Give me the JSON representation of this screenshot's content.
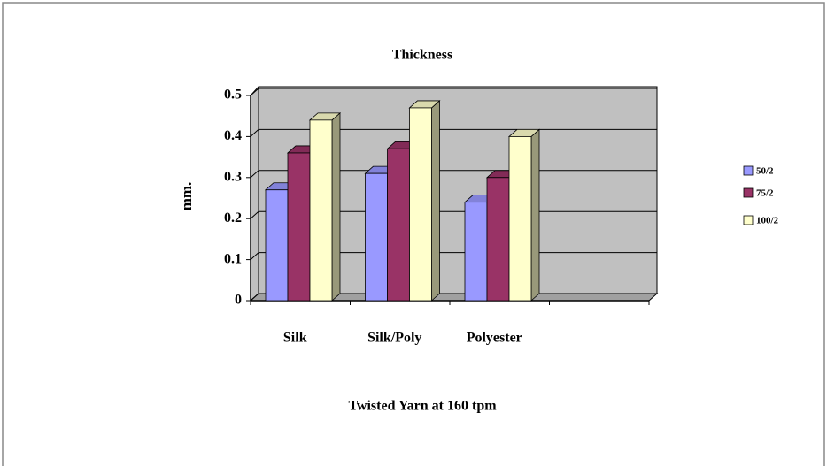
{
  "chart_data": {
    "type": "bar3d",
    "title": "Thickness",
    "y_label": "mm.",
    "x_label": "Twisted Yarn at 160 tpm",
    "categories": [
      "Silk",
      "Silk/Poly",
      "Polyester",
      null
    ],
    "series": [
      {
        "name": "50/2",
        "color": "#9999ff",
        "values": [
          0.27,
          0.31,
          0.24,
          null
        ]
      },
      {
        "name": "75/2",
        "color": "#993366",
        "values": [
          0.36,
          0.37,
          0.3,
          null
        ]
      },
      {
        "name": "100/2",
        "color": "#ffffcc",
        "values": [
          0.44,
          0.47,
          0.4,
          null
        ]
      }
    ],
    "ylim": [
      0,
      0.5
    ],
    "yticks": [
      0,
      0.1,
      0.2,
      0.3,
      0.4,
      0.5
    ],
    "grid": true,
    "wall_color": "#c0c0c0",
    "legend": "right"
  }
}
